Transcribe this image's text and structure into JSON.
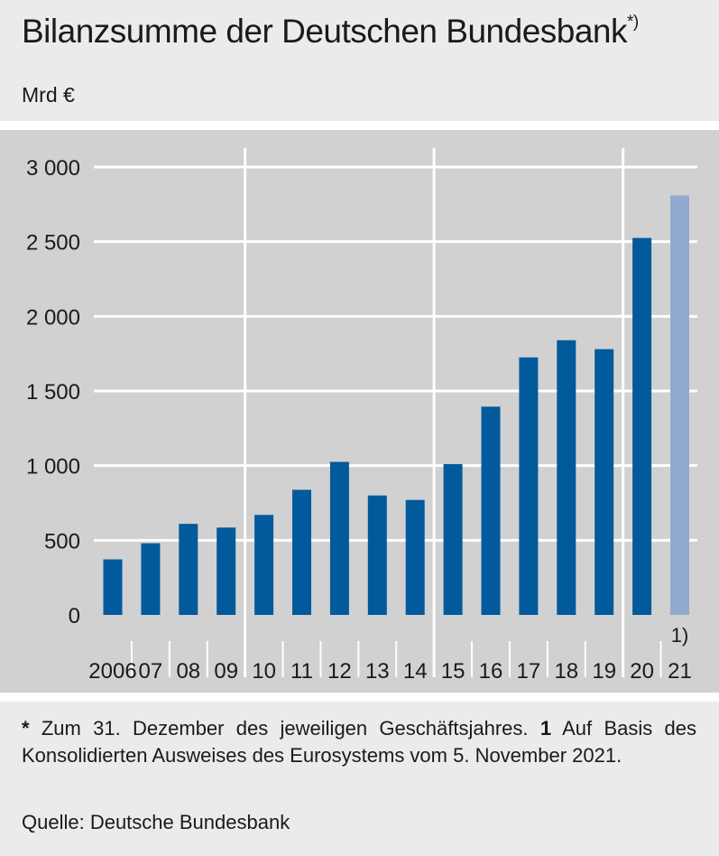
{
  "header": {
    "title": "Bilanzsumme der Deutschen Bundesbank",
    "title_marker": "*)",
    "unit": "Mrd €"
  },
  "footer": {
    "note_marker": "*",
    "note_text": " Zum 31. Dezember des jeweiligen Geschäftsjahres. ",
    "footnote_marker": "1",
    "footnote_text": " Auf Basis des Konsolidierten Ausweises des Eurosystems vom 5. November 2021.",
    "source": "Quelle: Deutsche Bundesbank"
  },
  "chart_data": {
    "type": "bar",
    "categories": [
      "2006",
      "07",
      "08",
      "09",
      "10",
      "11",
      "12",
      "13",
      "14",
      "15",
      "16",
      "17",
      "18",
      "19",
      "20",
      "21"
    ],
    "values": [
      372,
      480,
      610,
      585,
      670,
      838,
      1025,
      800,
      770,
      1010,
      1395,
      1725,
      1840,
      1780,
      2525,
      2810
    ],
    "bar_colors": [
      "#005a9c",
      "#005a9c",
      "#005a9c",
      "#005a9c",
      "#005a9c",
      "#005a9c",
      "#005a9c",
      "#005a9c",
      "#005a9c",
      "#005a9c",
      "#005a9c",
      "#005a9c",
      "#005a9c",
      "#005a9c",
      "#005a9c",
      "#92a9cf"
    ],
    "yticks": [
      "0",
      "500",
      "1 000",
      "1 500",
      "2 000",
      "2 500",
      "3 000"
    ],
    "ylim": [
      0,
      3000
    ],
    "bar_annotation": {
      "index": 15,
      "text": "1)"
    },
    "grid": true
  }
}
